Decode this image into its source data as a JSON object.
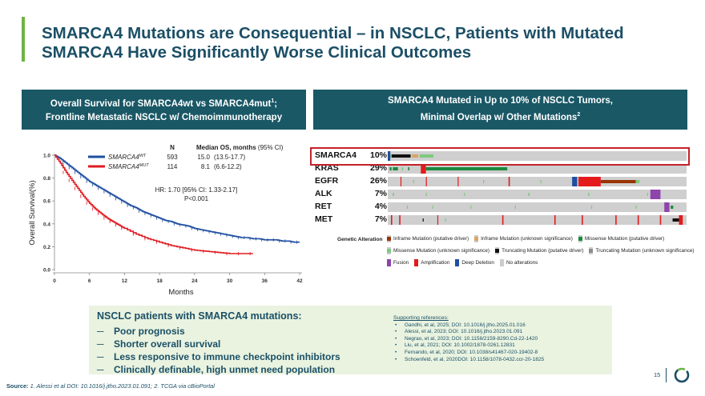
{
  "title": "SMARCA4 Mutations are Consequential – in NSCLC, Patients with Mutated SMARCA4 Have Significantly Worse Clinical Outcomes",
  "left_header": {
    "line1": "Overall Survival for SMARCA4wt vs SMARCA4mut",
    "sup": "1",
    "line1_end": ";",
    "line2": "Frontline Metastatic NSCLC w/ Chemoimmunotherapy"
  },
  "right_header": {
    "line1": "SMARCA4 Mutated in Up to 10% of NSCLC Tumors,",
    "line2": "Minimal Overlap w/ Other Mutations",
    "sup": "2"
  },
  "chart_data": {
    "type": "line",
    "xlabel": "Months",
    "ylabel": "Overall Survival(%)",
    "x_ticks": [
      0,
      6,
      12,
      18,
      24,
      30,
      36,
      42
    ],
    "y_ticks": [
      "0.0",
      "0.2",
      "0.4",
      "0.6",
      "0.8",
      "1.0"
    ],
    "xlim": [
      0,
      42
    ],
    "ylim": [
      0,
      1
    ],
    "table_header": {
      "n": "N",
      "median": "Median OS, months",
      "ci": "(95% CI)"
    },
    "series": [
      {
        "name": "SMARCA4",
        "sup": "WT",
        "color": "#1f4fa1",
        "n": "593",
        "median": "15.0",
        "ci": "(13.5-17.7)",
        "x": [
          0,
          1,
          2,
          3,
          4,
          5,
          6,
          7,
          8,
          9,
          10,
          11,
          12,
          13,
          14,
          15,
          16,
          17,
          18,
          19,
          20,
          21,
          22,
          23,
          24,
          25,
          26,
          27,
          28,
          29,
          30,
          31,
          32,
          33,
          34,
          35,
          36,
          37,
          38,
          39,
          40,
          41,
          42
        ],
        "y": [
          1.0,
          0.97,
          0.93,
          0.89,
          0.85,
          0.81,
          0.77,
          0.74,
          0.71,
          0.68,
          0.65,
          0.62,
          0.59,
          0.56,
          0.54,
          0.51,
          0.49,
          0.47,
          0.45,
          0.43,
          0.42,
          0.4,
          0.39,
          0.38,
          0.36,
          0.35,
          0.34,
          0.33,
          0.32,
          0.31,
          0.3,
          0.29,
          0.28,
          0.28,
          0.27,
          0.27,
          0.26,
          0.26,
          0.26,
          0.25,
          0.25,
          0.24,
          0.24
        ]
      },
      {
        "name": "SMARCA4",
        "sup": "MUT",
        "color": "#e01b22",
        "n": "114",
        "median": "8.1",
        "ci": "(6.6-12.2)",
        "x": [
          0,
          1,
          2,
          3,
          4,
          5,
          6,
          7,
          8,
          9,
          10,
          11,
          12,
          14,
          16,
          18,
          20,
          22,
          24,
          26,
          28,
          30,
          32,
          34
        ],
        "y": [
          1.0,
          0.93,
          0.85,
          0.78,
          0.71,
          0.64,
          0.58,
          0.53,
          0.49,
          0.45,
          0.42,
          0.39,
          0.36,
          0.31,
          0.27,
          0.24,
          0.21,
          0.19,
          0.17,
          0.16,
          0.15,
          0.14,
          0.14,
          0.14
        ]
      }
    ],
    "annotation": {
      "line1": "HR: 1.70 [95% CI: 1.33-2.17]",
      "line2": "P<0.001"
    }
  },
  "oncoprint": {
    "genes": [
      {
        "name": "SMARCA4",
        "pct": "10%"
      },
      {
        "name": "KRAS",
        "pct": "29%"
      },
      {
        "name": "EGFR",
        "pct": "26%"
      },
      {
        "name": "ALK",
        "pct": "7%"
      },
      {
        "name": "RET",
        "pct": "4%"
      },
      {
        "name": "MET",
        "pct": "7%"
      }
    ],
    "legend_title": "Genetic Alteration",
    "legend_items": [
      {
        "label": "Inframe Mutation (putative driver)",
        "color": "#993404"
      },
      {
        "label": "Inframe Mutation (unknown significance)",
        "color": "#d9a566"
      },
      {
        "label": "Missense Mutation (putative driver)",
        "color": "#1a8a3f"
      },
      {
        "label": "Missense Mutation (unknown significance)",
        "color": "#7fc97f"
      },
      {
        "label": "Truncating Mutation (putative driver)",
        "color": "#111111"
      },
      {
        "label": "Truncating Mutation (unknown significance)",
        "color": "#8c8c8c"
      },
      {
        "label": "Fusion",
        "color": "#8e44ad"
      },
      {
        "label": "Amplification",
        "color": "#e41a1c"
      },
      {
        "label": "Deep Deletion",
        "color": "#1f4fa1"
      },
      {
        "label": "No alterations",
        "color": "#cfcfcf"
      }
    ]
  },
  "summary": {
    "title": "NSCLC patients with SMARCA4 mutations:",
    "dash": "─",
    "items": [
      "Poor prognosis",
      "Shorter overall survival",
      "Less responsive to immune checkpoint inhibitors",
      "Clinically definable, high unmet need population"
    ]
  },
  "references": {
    "title": "Supporting references:",
    "bullet": "•",
    "items": [
      "Gandhi, et al, 2025; DOI: 10.1016/j.jtho.2025.01.016",
      "Alessi, et al, 2023; DOI: 10.1016/j.jtho.2023.01.091",
      "Negrao, et al, 2023; DOI: 10.1158/2159-8290.Cd-22-1420",
      "Liu, et al, 2021; DOI: 10.1002/1878-0261.12831",
      "Fernando, et al, 2020; DOI: 10.1038/s41467-020-19402-8",
      "Schoenfeld, et al, 2020DOI: 10.1158/1078-0432.ccr-20-1825"
    ]
  },
  "source": {
    "label": "Source:",
    "text": "1. Alessi et al DOI: 10.1016/j.jtho.2023.01.091; 2. TCGA via cBioPortal"
  },
  "page_number": "15",
  "colors": {
    "accent": "#6fb344",
    "navy": "#1b4f66",
    "header_bg": "#1a5866",
    "box_bg": "#e9f3e0"
  }
}
